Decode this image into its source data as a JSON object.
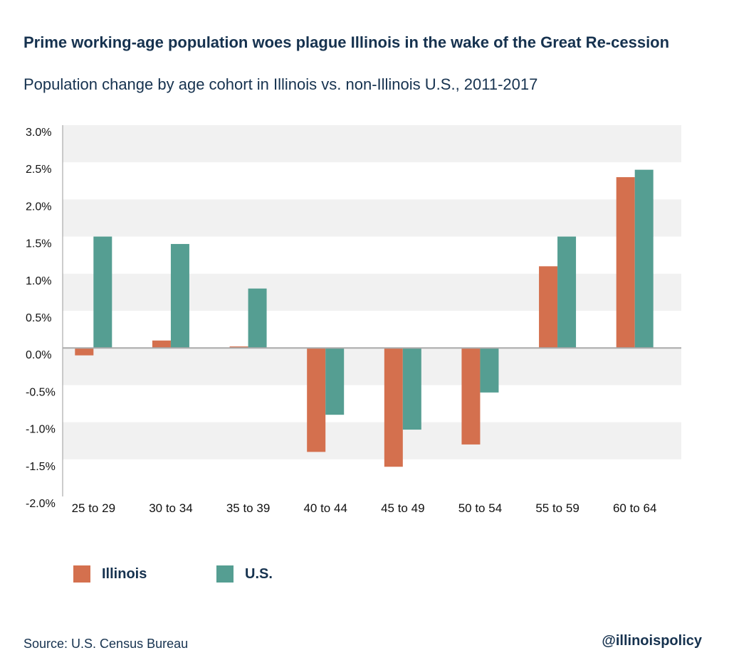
{
  "chart_data": {
    "type": "bar",
    "title": "Prime working-age population woes plague Illinois in the wake of the Great Re-cession",
    "subtitle": "Population change by age cohort in Illinois vs. non-Illinois U.S., 2011-2017",
    "categories": [
      "25 to 29",
      "30 to 34",
      "35 to 39",
      "40 to 44",
      "45 to 49",
      "50 to 54",
      "55 to 59",
      "60 to 64"
    ],
    "series": [
      {
        "name": "Illinois",
        "color": "#d4704e",
        "values": [
          -0.1,
          0.1,
          0.02,
          -1.4,
          -1.6,
          -1.3,
          1.1,
          2.3
        ]
      },
      {
        "name": "U.S.",
        "color": "#559e92",
        "values": [
          1.5,
          1.4,
          0.8,
          -0.9,
          -1.1,
          -0.6,
          1.5,
          2.4
        ]
      }
    ],
    "ylim": [
      -2.0,
      3.0
    ],
    "yticks": [
      "3.0%",
      "2.5%",
      "2.0%",
      "1.5%",
      "1.0%",
      "0.5%",
      "0.0%",
      "-0.5%",
      "-1.0%",
      "-1.5%",
      "-2.0%"
    ],
    "grid": "alternating bands",
    "legend": "bottom-left"
  },
  "source": "Source: U.S. Census Bureau",
  "handle": "@illinoispolicy"
}
